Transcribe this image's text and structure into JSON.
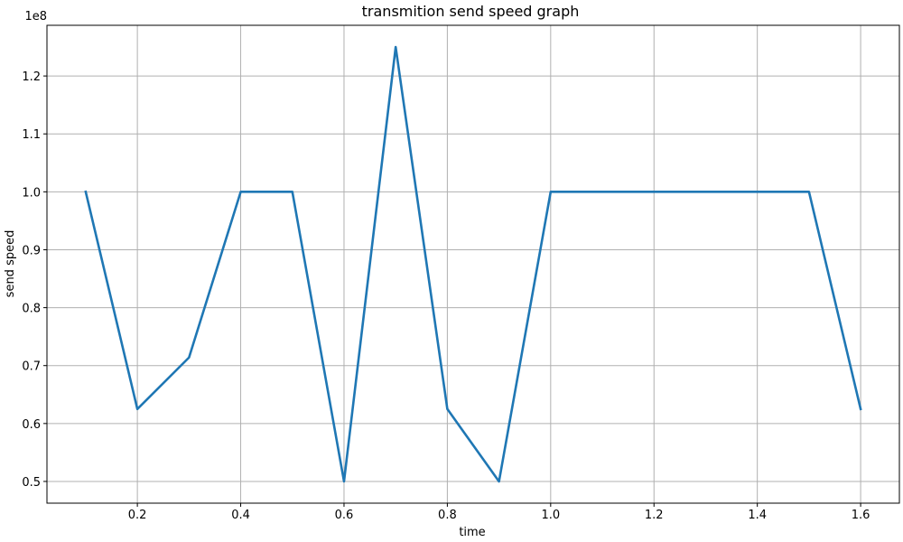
{
  "chart_data": {
    "type": "line",
    "title": "transmition send speed graph",
    "xlabel": "time",
    "ylabel": "send speed",
    "y_offset_label": "1e8",
    "y_scale_factor": 100000000,
    "xlim": [
      0.025,
      1.675
    ],
    "ylim": [
      0.4625,
      1.2875
    ],
    "xticks": [
      0.2,
      0.4,
      0.6,
      0.8,
      1.0,
      1.2,
      1.4,
      1.6
    ],
    "xtick_labels": [
      "0.2",
      "0.4",
      "0.6",
      "0.8",
      "1.0",
      "1.2",
      "1.4",
      "1.6"
    ],
    "yticks": [
      0.5,
      0.6,
      0.7,
      0.8,
      0.9,
      1.0,
      1.1,
      1.2
    ],
    "ytick_labels": [
      "0.5",
      "0.6",
      "0.7",
      "0.8",
      "0.9",
      "1.0",
      "1.1",
      "1.2"
    ],
    "grid": true,
    "series": [
      {
        "color": "#1f77b4",
        "x": [
          0.1,
          0.2,
          0.3,
          0.4,
          0.5,
          0.6,
          0.7,
          0.8,
          0.9,
          1.0,
          1.1,
          1.2,
          1.3,
          1.4,
          1.5,
          1.6
        ],
        "y": [
          1.0,
          0.625,
          0.714,
          1.0,
          1.0,
          0.5,
          1.25,
          0.625,
          0.5,
          1.0,
          1.0,
          1.0,
          1.0,
          1.0,
          1.0,
          0.625
        ]
      }
    ]
  }
}
